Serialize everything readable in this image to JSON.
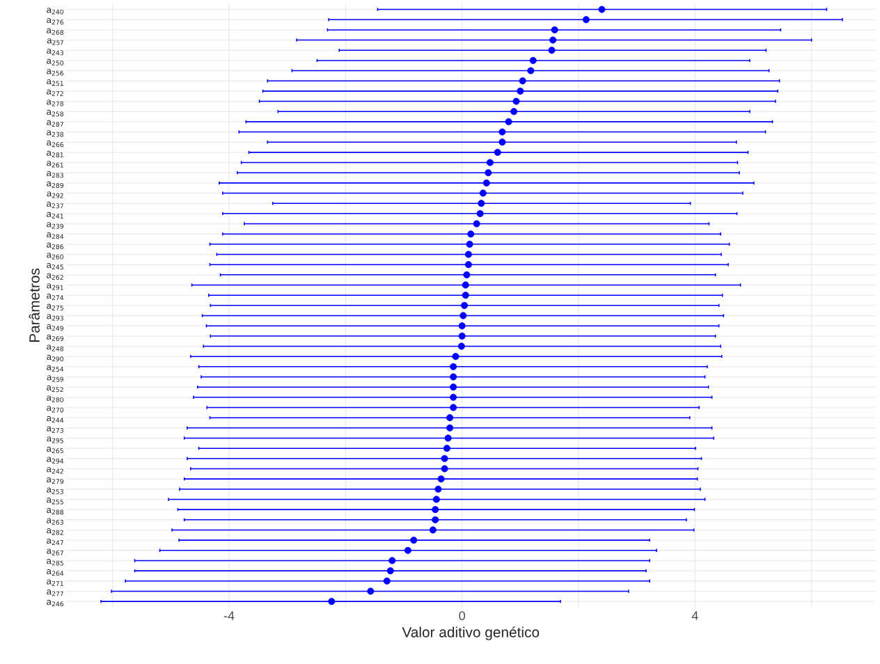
{
  "chart_data": {
    "type": "scatter",
    "orientation": "horizontal",
    "xlabel": "Valor aditivo genético",
    "ylabel": "Parâmetros",
    "categories": [
      "a$_{240}$",
      "a$_{276}$",
      "a$_{268}$",
      "a$_{257}$",
      "a$_{243}$",
      "a$_{250}$",
      "a$_{256}$",
      "a$_{251}$",
      "a$_{272}$",
      "a$_{278}$",
      "a$_{258}$",
      "a$_{287}$",
      "a$_{238}$",
      "a$_{266}$",
      "a$_{281}$",
      "a$_{261}$",
      "a$_{283}$",
      "a$_{289}$",
      "a$_{292}$",
      "a$_{237}$",
      "a$_{241}$",
      "a$_{239}$",
      "a$_{284}$",
      "a$_{286}$",
      "a$_{260}$",
      "a$_{245}$",
      "a$_{262}$",
      "a$_{291}$",
      "a$_{274}$",
      "a$_{275}$",
      "a$_{293}$",
      "a$_{249}$",
      "a$_{269}$",
      "a$_{248}$",
      "a$_{290}$",
      "a$_{254}$",
      "a$_{259}$",
      "a$_{252}$",
      "a$_{280}$",
      "a$_{270}$",
      "a$_{244}$",
      "a$_{273}$",
      "a$_{295}$",
      "a$_{265}$",
      "a$_{294}$",
      "a$_{242}$",
      "a$_{279}$",
      "a$_{253}$",
      "a$_{255}$",
      "a$_{288}$",
      "a$_{263}$",
      "a$_{282}$",
      "a$_{247}$",
      "a$_{267}$",
      "a$_{285}$",
      "a$_{264}$",
      "a$_{271}$",
      "a$_{277}$",
      "a$_{246}$"
    ],
    "values": [
      2.4,
      2.13,
      1.59,
      1.56,
      1.54,
      1.22,
      1.18,
      1.04,
      1.0,
      0.93,
      0.89,
      0.8,
      0.69,
      0.69,
      0.61,
      0.48,
      0.45,
      0.42,
      0.36,
      0.33,
      0.31,
      0.25,
      0.15,
      0.13,
      0.11,
      0.11,
      0.08,
      0.06,
      0.06,
      0.04,
      0.02,
      0.0,
      0.0,
      -0.01,
      -0.11,
      -0.15,
      -0.15,
      -0.15,
      -0.15,
      -0.15,
      -0.21,
      -0.21,
      -0.24,
      -0.26,
      -0.3,
      -0.3,
      -0.36,
      -0.41,
      -0.44,
      -0.46,
      -0.46,
      -0.5,
      -0.83,
      -0.93,
      -1.2,
      -1.23,
      -1.29,
      -1.57,
      -2.24
    ],
    "errors": [
      [
        -1.45,
        6.26
      ],
      [
        -2.29,
        6.53
      ],
      [
        -2.31,
        5.47
      ],
      [
        -2.84,
        6.0
      ],
      [
        -2.11,
        5.22
      ],
      [
        -2.49,
        4.94
      ],
      [
        -2.92,
        5.27
      ],
      [
        -3.34,
        5.45
      ],
      [
        -3.42,
        5.42
      ],
      [
        -3.48,
        5.38
      ],
      [
        -3.16,
        4.94
      ],
      [
        -3.71,
        5.33
      ],
      [
        -3.83,
        5.21
      ],
      [
        -3.34,
        4.71
      ],
      [
        -3.66,
        4.91
      ],
      [
        -3.79,
        4.73
      ],
      [
        -3.86,
        4.76
      ],
      [
        -4.17,
        5.01
      ],
      [
        -4.11,
        4.82
      ],
      [
        -3.25,
        3.92
      ],
      [
        -4.11,
        4.72
      ],
      [
        -3.74,
        4.24
      ],
      [
        -4.11,
        4.44
      ],
      [
        -4.33,
        4.59
      ],
      [
        -4.21,
        4.45
      ],
      [
        -4.33,
        4.57
      ],
      [
        -4.15,
        4.35
      ],
      [
        -4.64,
        4.78
      ],
      [
        -4.35,
        4.47
      ],
      [
        -4.32,
        4.41
      ],
      [
        -4.46,
        4.49
      ],
      [
        -4.39,
        4.41
      ],
      [
        -4.32,
        4.35
      ],
      [
        -4.44,
        4.44
      ],
      [
        -4.66,
        4.46
      ],
      [
        -4.52,
        4.21
      ],
      [
        -4.48,
        4.17
      ],
      [
        -4.54,
        4.23
      ],
      [
        -4.61,
        4.29
      ],
      [
        -4.38,
        4.07
      ],
      [
        -4.33,
        3.91
      ],
      [
        -4.72,
        4.29
      ],
      [
        -4.77,
        4.32
      ],
      [
        -4.52,
        4.01
      ],
      [
        -4.72,
        4.11
      ],
      [
        -4.66,
        4.05
      ],
      [
        -4.77,
        4.04
      ],
      [
        -4.85,
        4.09
      ],
      [
        -5.04,
        4.17
      ],
      [
        -4.88,
        3.99
      ],
      [
        -4.77,
        3.85
      ],
      [
        -4.98,
        3.98
      ],
      [
        -4.86,
        3.22
      ],
      [
        -5.19,
        3.34
      ],
      [
        -5.62,
        3.22
      ],
      [
        -5.62,
        3.16
      ],
      [
        -5.78,
        3.22
      ],
      [
        -6.02,
        2.86
      ],
      [
        -6.2,
        1.69
      ]
    ],
    "color": "#0000ff",
    "marker": "circle",
    "grid": true,
    "xlim": [
      -6.8,
      7.1
    ],
    "xticks": [
      {
        "value": -6,
        "label": null
      },
      -4,
      {
        "value": -2,
        "label": null
      },
      0,
      {
        "value": 2,
        "label": null
      },
      4,
      {
        "value": 6,
        "label": null
      }
    ]
  }
}
